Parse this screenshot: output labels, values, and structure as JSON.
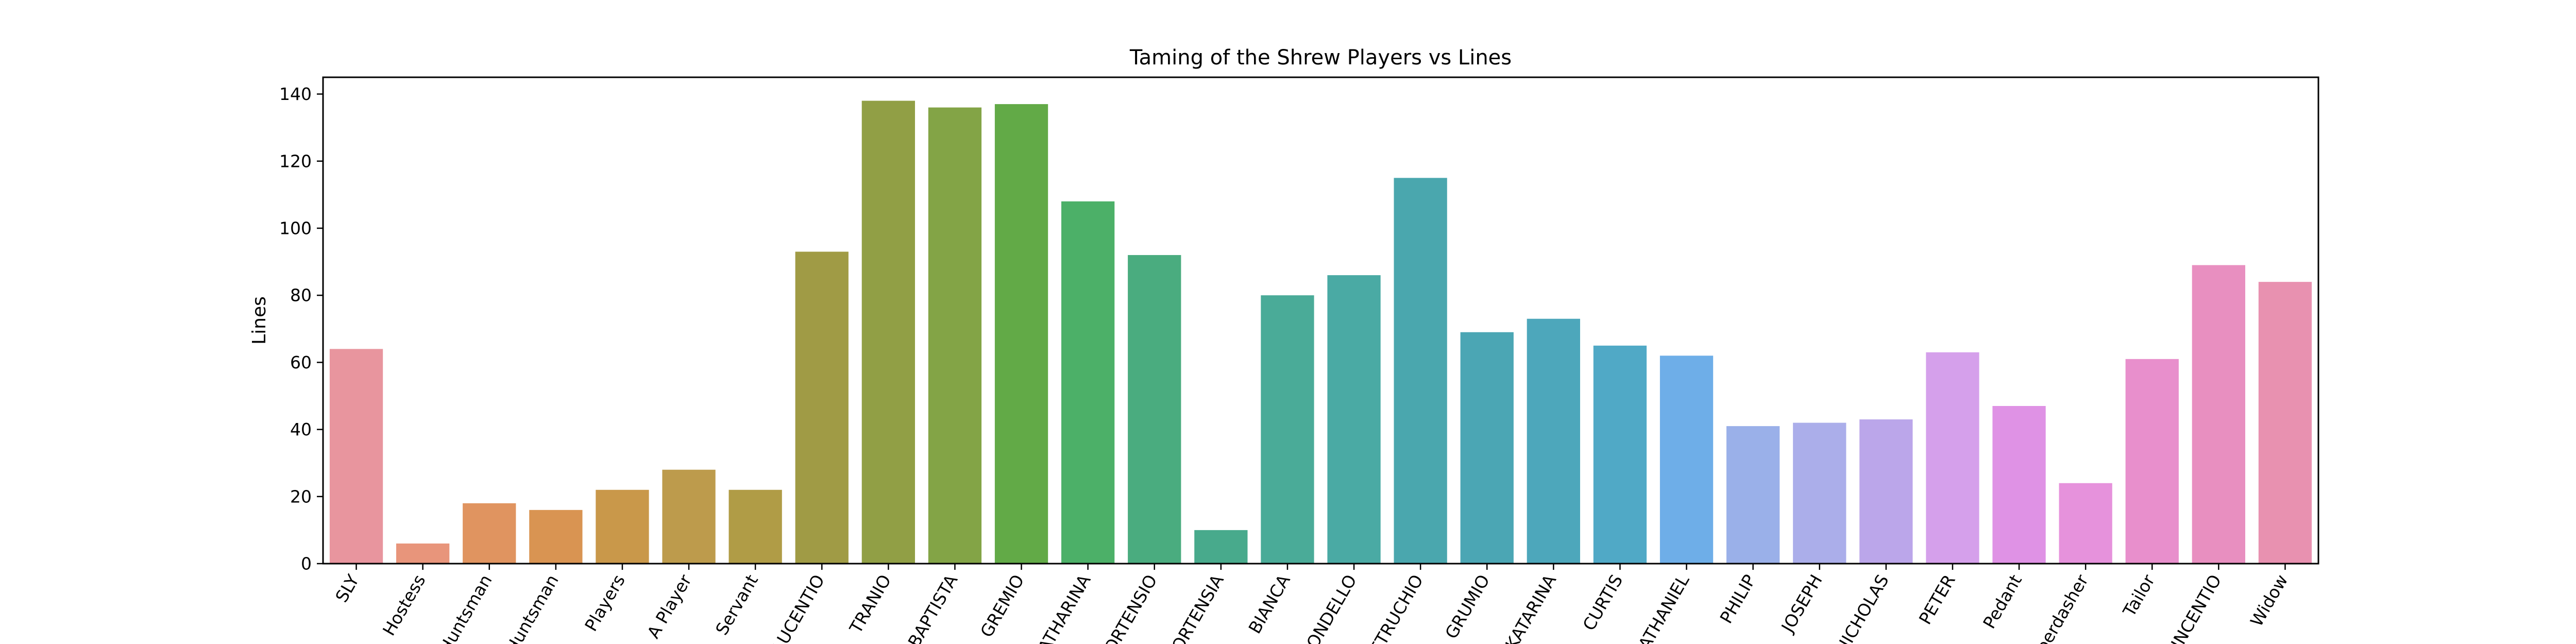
{
  "chart_data": {
    "type": "bar",
    "title": "Taming of the Shrew Players vs Lines",
    "xlabel": "",
    "ylabel": "Lines",
    "ylim": [
      0,
      145
    ],
    "yticks": [
      0,
      20,
      40,
      60,
      80,
      100,
      120,
      140
    ],
    "grid": false,
    "categories": [
      "SLY",
      "Hostess",
      "Huntsman",
      "Huntsman",
      "Players",
      "A Player",
      "Servant",
      "LUCENTIO",
      "TRANIO",
      "BAPTISTA",
      "GREMIO",
      "KATHARINA",
      "HORTENSIO",
      "HORTENSIA",
      "BIANCA",
      "BIONDELLO",
      "PETRUCHIO",
      "GRUMIO",
      "KATARINA",
      "CURTIS",
      "NATHANIEL",
      "PHILIP",
      "JOSEPH",
      "NICHOLAS",
      "PETER",
      "Pedant",
      "Haberdasher",
      "Tailor",
      "VINCENTIO",
      "Widow"
    ],
    "values": [
      64,
      6,
      18,
      16,
      22,
      28,
      22,
      93,
      138,
      136,
      137,
      108,
      92,
      10,
      80,
      86,
      115,
      69,
      73,
      65,
      62,
      41,
      42,
      43,
      63,
      47,
      24,
      61,
      89,
      84
    ],
    "colors": [
      "#e8959e",
      "#e8957b",
      "#e09460",
      "#d99452",
      "#c9984a",
      "#bd9b4c",
      "#b09c46",
      "#a09b45",
      "#919f45",
      "#83a446",
      "#62aa47",
      "#4cb068",
      "#4aac7f",
      "#48aa8c",
      "#4aab98",
      "#4aaaa4",
      "#4aa7ae",
      "#4ba6b4",
      "#4da7bb",
      "#50a9c6",
      "#6eaee8",
      "#9ab0e9",
      "#abaeea",
      "#bba6ea",
      "#d5a0eb",
      "#df92e5",
      "#e692dc",
      "#e88fcc",
      "#e88fc0",
      "#e891b0"
    ]
  }
}
